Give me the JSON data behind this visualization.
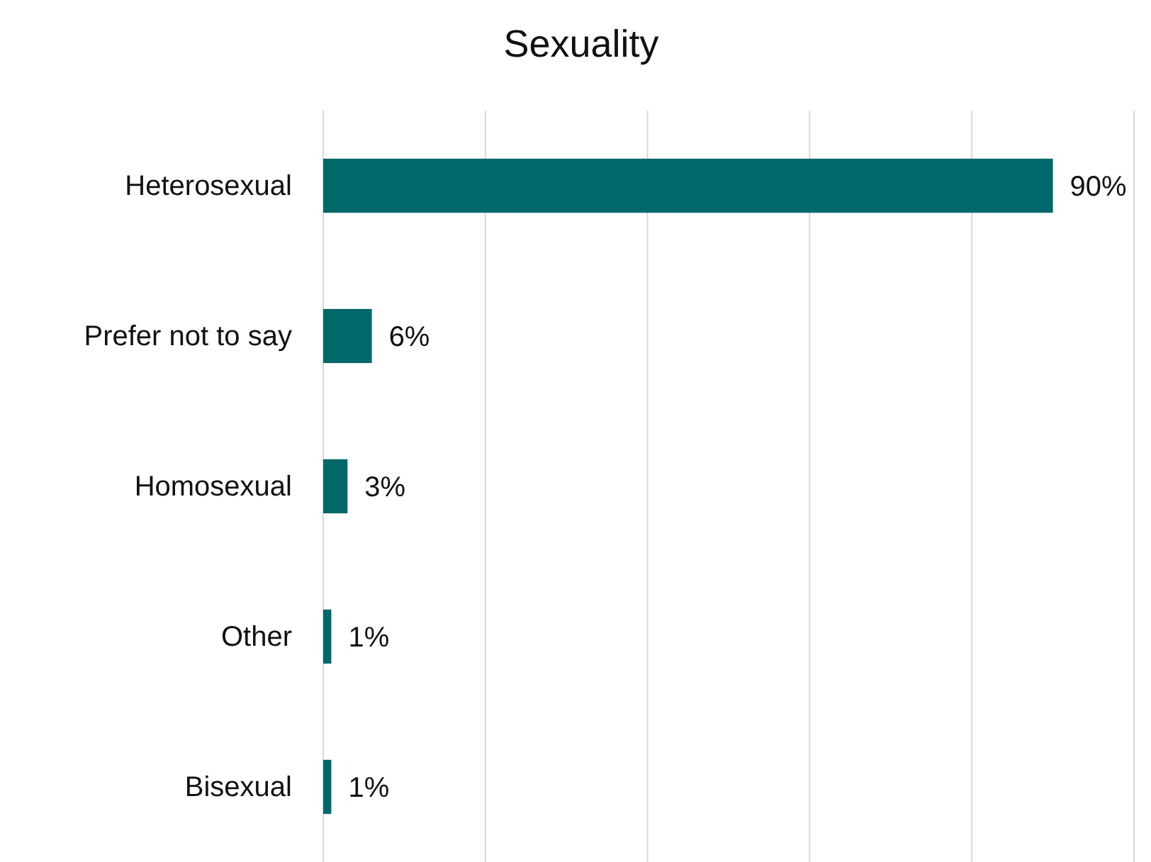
{
  "chart_data": {
    "type": "bar",
    "orientation": "horizontal",
    "title": "Sexuality",
    "categories": [
      "Heterosexual",
      "Prefer not to say",
      "Homosexual",
      "Other",
      "Bisexual"
    ],
    "values": [
      90,
      6,
      3,
      1,
      1
    ],
    "value_labels": [
      "90%",
      "6%",
      "3%",
      "1%",
      "1%"
    ],
    "color": "#00676b",
    "xlim": [
      0,
      100
    ],
    "xticks": [
      {
        "value": 0,
        "label": null
      },
      {
        "value": 20,
        "label": null
      },
      {
        "value": 40,
        "label": null
      },
      {
        "value": 60,
        "label": null
      },
      {
        "value": 80,
        "label": null
      },
      {
        "value": 100,
        "label": null
      }
    ],
    "grid": "x",
    "tick_labels": "y"
  }
}
